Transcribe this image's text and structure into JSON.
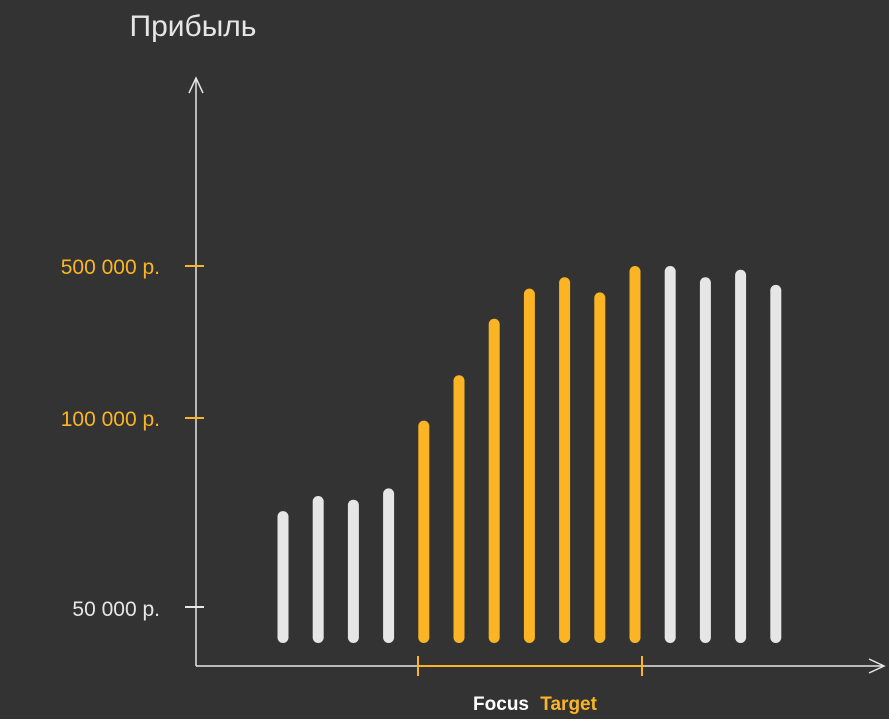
{
  "chart_data": {
    "type": "bar",
    "ylabel": "Прибыль",
    "y_ticks": [
      {
        "label": "500 000 р.",
        "highlight": true
      },
      {
        "label": "100 000 р.",
        "highlight": true
      },
      {
        "label": "50 000 р.",
        "highlight": false
      }
    ],
    "values": [
      0.35,
      0.39,
      0.38,
      0.41,
      0.59,
      0.71,
      0.86,
      0.94,
      0.97,
      0.93,
      1.0,
      1.0,
      0.97,
      0.99,
      0.95
    ],
    "highlighted_range": [
      4,
      10
    ],
    "legend": {
      "focus": "Focus",
      "target": "Target"
    },
    "colors": {
      "background": "#333333",
      "highlight": "#FBB424",
      "normal": "#E6E6E6",
      "axis": "#E6E6E6"
    }
  }
}
